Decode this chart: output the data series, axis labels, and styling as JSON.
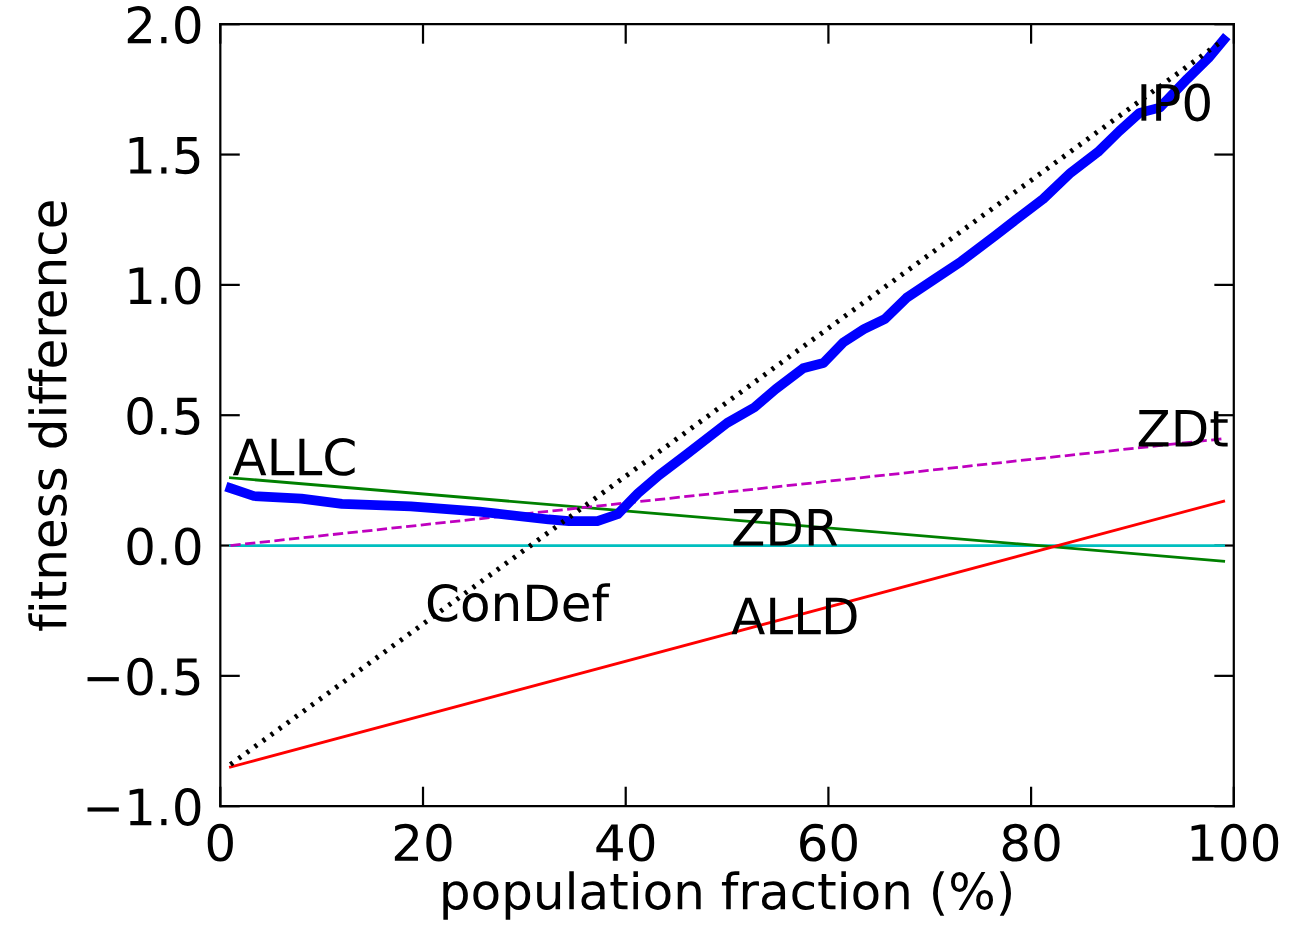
{
  "chart_data": {
    "type": "line",
    "xlabel": "population fraction (%)",
    "ylabel": "fitness difference",
    "xlim": [
      0,
      100
    ],
    "ylim": [
      -1.0,
      2.0
    ],
    "xticks": [
      0,
      20,
      40,
      60,
      80,
      100
    ],
    "yticks": [
      {
        "value": -1.0,
        "label": "−1.0"
      },
      {
        "value": -0.5,
        "label": "−0.5"
      },
      {
        "value": 0,
        "label": "0.0"
      },
      {
        "value": 0.5,
        "label": "0.5"
      },
      {
        "value": 1.0,
        "label": "1.0"
      },
      {
        "value": 1.5,
        "label": "1.5"
      },
      {
        "value": 2.0,
        "label": "2.0"
      }
    ],
    "grid": false,
    "marker": "none",
    "series": [
      {
        "color": "#00bfbf",
        "line_style": "solid",
        "x": [
          1,
          99
        ],
        "values": [
          0,
          0
        ]
      },
      {
        "color": "#008000",
        "line_style": "solid",
        "x": [
          1,
          99
        ],
        "values": [
          0.26,
          -0.06
        ]
      },
      {
        "color": "#bf00bf",
        "line_style": "dashed",
        "x": [
          1,
          99
        ],
        "values": [
          0,
          0.41
        ]
      },
      {
        "color": "#ff0000",
        "line_style": "solid",
        "x": [
          1,
          99
        ],
        "values": [
          -0.85,
          0.17
        ]
      },
      {
        "color": "#000000",
        "line_style": "dotted",
        "x": [
          1,
          99
        ],
        "values": [
          -0.84,
          1.94
        ]
      },
      {
        "color": "#0000ff",
        "line_style": "solid",
        "x": [
          1,
          3.3,
          8,
          12,
          18.8,
          25.6,
          32.4,
          34.4,
          37.2,
          39.2,
          41.2,
          43.3,
          46,
          50,
          52.7,
          54.8,
          57.5,
          59.5,
          61.5,
          63.5,
          65.6,
          67.7,
          70.4,
          73.1,
          76.5,
          78.5,
          81.2,
          83.9,
          86.6,
          88.7,
          90.7,
          92.7,
          95.4,
          97.5,
          99
        ],
        "values": [
          0.22,
          0.19,
          0.18,
          0.16,
          0.15,
          0.13,
          0.1,
          0.094,
          0.094,
          0.12,
          0.2,
          0.27,
          0.35,
          0.47,
          0.53,
          0.6,
          0.68,
          0.7,
          0.78,
          0.83,
          0.87,
          0.95,
          1.02,
          1.09,
          1.19,
          1.25,
          1.33,
          1.43,
          1.51,
          1.59,
          1.66,
          1.68,
          1.79,
          1.87,
          1.94
        ]
      }
    ],
    "annotations": [
      {
        "text": "ALLC",
        "x": 1.2,
        "y": 0.27
      },
      {
        "text": "ConDef",
        "x": 20.2,
        "y": -0.29
      },
      {
        "text": "ZDR",
        "x": 50.4,
        "y": 0.0
      },
      {
        "text": "ALLD",
        "x": 50.4,
        "y": -0.34
      },
      {
        "text": "ZDt",
        "x": 90.4,
        "y": 0.38
      },
      {
        "text": "IP0",
        "x": 90.4,
        "y": 1.63
      }
    ]
  }
}
